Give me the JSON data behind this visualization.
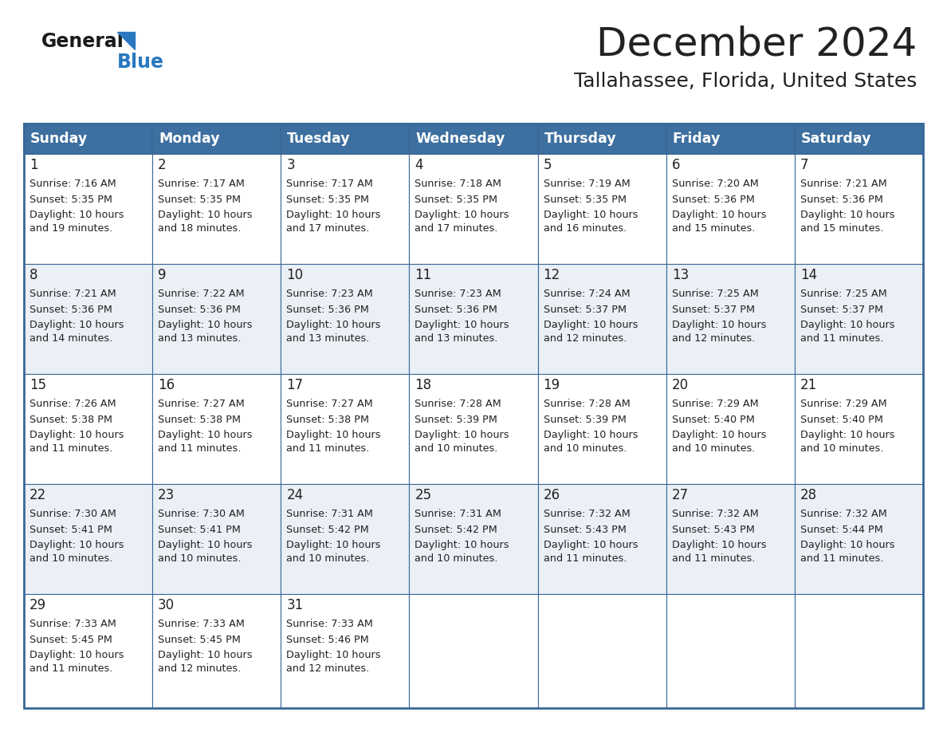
{
  "title": "December 2024",
  "subtitle": "Tallahassee, Florida, United States",
  "header_color": "#3d6fa0",
  "header_text_color": "#ffffff",
  "odd_row_bg": "#eaf0f6",
  "even_row_bg": "#ffffff",
  "border_color": "#3a6898",
  "text_color": "#222222",
  "days_of_week": [
    "Sunday",
    "Monday",
    "Tuesday",
    "Wednesday",
    "Thursday",
    "Friday",
    "Saturday"
  ],
  "logo_main_color": "#1a1a1a",
  "logo_blue_color": "#2878c0",
  "calendar_data": [
    [
      {
        "day": 1,
        "sunrise": "7:16 AM",
        "sunset": "5:35 PM",
        "daylight_hours": 10,
        "daylight_minutes": 19
      },
      {
        "day": 2,
        "sunrise": "7:17 AM",
        "sunset": "5:35 PM",
        "daylight_hours": 10,
        "daylight_minutes": 18
      },
      {
        "day": 3,
        "sunrise": "7:17 AM",
        "sunset": "5:35 PM",
        "daylight_hours": 10,
        "daylight_minutes": 17
      },
      {
        "day": 4,
        "sunrise": "7:18 AM",
        "sunset": "5:35 PM",
        "daylight_hours": 10,
        "daylight_minutes": 17
      },
      {
        "day": 5,
        "sunrise": "7:19 AM",
        "sunset": "5:35 PM",
        "daylight_hours": 10,
        "daylight_minutes": 16
      },
      {
        "day": 6,
        "sunrise": "7:20 AM",
        "sunset": "5:36 PM",
        "daylight_hours": 10,
        "daylight_minutes": 15
      },
      {
        "day": 7,
        "sunrise": "7:21 AM",
        "sunset": "5:36 PM",
        "daylight_hours": 10,
        "daylight_minutes": 15
      }
    ],
    [
      {
        "day": 8,
        "sunrise": "7:21 AM",
        "sunset": "5:36 PM",
        "daylight_hours": 10,
        "daylight_minutes": 14
      },
      {
        "day": 9,
        "sunrise": "7:22 AM",
        "sunset": "5:36 PM",
        "daylight_hours": 10,
        "daylight_minutes": 13
      },
      {
        "day": 10,
        "sunrise": "7:23 AM",
        "sunset": "5:36 PM",
        "daylight_hours": 10,
        "daylight_minutes": 13
      },
      {
        "day": 11,
        "sunrise": "7:23 AM",
        "sunset": "5:36 PM",
        "daylight_hours": 10,
        "daylight_minutes": 13
      },
      {
        "day": 12,
        "sunrise": "7:24 AM",
        "sunset": "5:37 PM",
        "daylight_hours": 10,
        "daylight_minutes": 12
      },
      {
        "day": 13,
        "sunrise": "7:25 AM",
        "sunset": "5:37 PM",
        "daylight_hours": 10,
        "daylight_minutes": 12
      },
      {
        "day": 14,
        "sunrise": "7:25 AM",
        "sunset": "5:37 PM",
        "daylight_hours": 10,
        "daylight_minutes": 11
      }
    ],
    [
      {
        "day": 15,
        "sunrise": "7:26 AM",
        "sunset": "5:38 PM",
        "daylight_hours": 10,
        "daylight_minutes": 11
      },
      {
        "day": 16,
        "sunrise": "7:27 AM",
        "sunset": "5:38 PM",
        "daylight_hours": 10,
        "daylight_minutes": 11
      },
      {
        "day": 17,
        "sunrise": "7:27 AM",
        "sunset": "5:38 PM",
        "daylight_hours": 10,
        "daylight_minutes": 11
      },
      {
        "day": 18,
        "sunrise": "7:28 AM",
        "sunset": "5:39 PM",
        "daylight_hours": 10,
        "daylight_minutes": 10
      },
      {
        "day": 19,
        "sunrise": "7:28 AM",
        "sunset": "5:39 PM",
        "daylight_hours": 10,
        "daylight_minutes": 10
      },
      {
        "day": 20,
        "sunrise": "7:29 AM",
        "sunset": "5:40 PM",
        "daylight_hours": 10,
        "daylight_minutes": 10
      },
      {
        "day": 21,
        "sunrise": "7:29 AM",
        "sunset": "5:40 PM",
        "daylight_hours": 10,
        "daylight_minutes": 10
      }
    ],
    [
      {
        "day": 22,
        "sunrise": "7:30 AM",
        "sunset": "5:41 PM",
        "daylight_hours": 10,
        "daylight_minutes": 10
      },
      {
        "day": 23,
        "sunrise": "7:30 AM",
        "sunset": "5:41 PM",
        "daylight_hours": 10,
        "daylight_minutes": 10
      },
      {
        "day": 24,
        "sunrise": "7:31 AM",
        "sunset": "5:42 PM",
        "daylight_hours": 10,
        "daylight_minutes": 10
      },
      {
        "day": 25,
        "sunrise": "7:31 AM",
        "sunset": "5:42 PM",
        "daylight_hours": 10,
        "daylight_minutes": 10
      },
      {
        "day": 26,
        "sunrise": "7:32 AM",
        "sunset": "5:43 PM",
        "daylight_hours": 10,
        "daylight_minutes": 11
      },
      {
        "day": 27,
        "sunrise": "7:32 AM",
        "sunset": "5:43 PM",
        "daylight_hours": 10,
        "daylight_minutes": 11
      },
      {
        "day": 28,
        "sunrise": "7:32 AM",
        "sunset": "5:44 PM",
        "daylight_hours": 10,
        "daylight_minutes": 11
      }
    ],
    [
      {
        "day": 29,
        "sunrise": "7:33 AM",
        "sunset": "5:45 PM",
        "daylight_hours": 10,
        "daylight_minutes": 11
      },
      {
        "day": 30,
        "sunrise": "7:33 AM",
        "sunset": "5:45 PM",
        "daylight_hours": 10,
        "daylight_minutes": 12
      },
      {
        "day": 31,
        "sunrise": "7:33 AM",
        "sunset": "5:46 PM",
        "daylight_hours": 10,
        "daylight_minutes": 12
      },
      null,
      null,
      null,
      null
    ]
  ],
  "figwidth": 11.88,
  "figheight": 9.18,
  "dpi": 100
}
